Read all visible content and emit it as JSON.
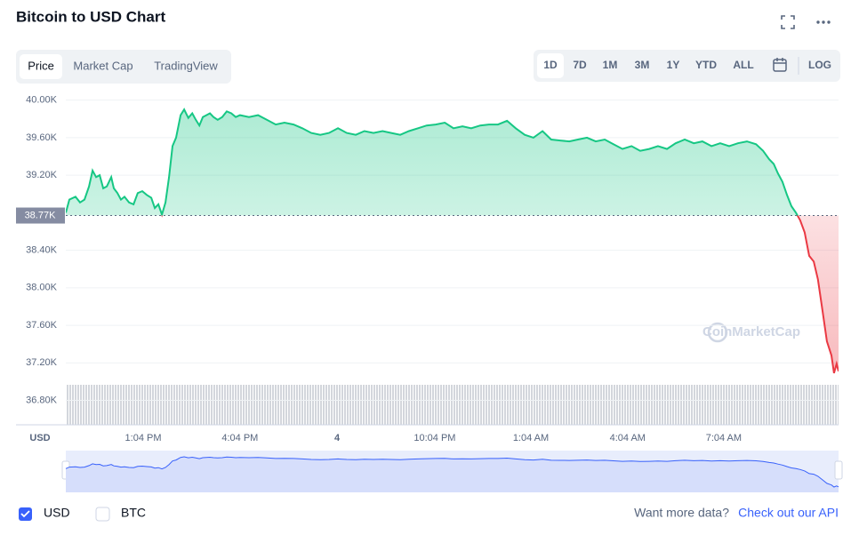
{
  "header": {
    "title": "Bitcoin to USD Chart",
    "tabs": [
      "Price",
      "Market Cap",
      "TradingView"
    ],
    "ranges": [
      "1D",
      "7D",
      "1M",
      "3M",
      "1Y",
      "YTD",
      "ALL"
    ],
    "log": "LOG"
  },
  "chart_data": {
    "type": "line",
    "y_label": "USD",
    "watermark": "CoinMarketCap",
    "up_color": "#16c784",
    "down_color": "#ea3943",
    "grid": true,
    "baseline": {
      "value": 38770,
      "label": "38.77K"
    },
    "ylim": [
      36540,
      40120
    ],
    "yticks": [
      {
        "value": 40000,
        "label": "40.00K"
      },
      {
        "value": 39600,
        "label": "39.60K"
      },
      {
        "value": 39200,
        "label": "39.20K"
      },
      {
        "value": 38400,
        "label": "38.40K"
      },
      {
        "value": 38000,
        "label": "38.00K"
      },
      {
        "value": 37600,
        "label": "37.60K"
      },
      {
        "value": 37200,
        "label": "37.20K"
      },
      {
        "value": 36800,
        "label": "36.80K"
      }
    ],
    "xlim": [
      0,
      23.96
    ],
    "xticks": [
      {
        "value": 2.4,
        "label": "1:04 PM"
      },
      {
        "value": 5.4,
        "label": "4:04 PM"
      },
      {
        "value": 8.41,
        "label": "4"
      },
      {
        "value": 11.44,
        "label": "10:04 PM"
      },
      {
        "value": 14.42,
        "label": "1:04 AM"
      },
      {
        "value": 17.42,
        "label": "4:04 AM"
      },
      {
        "value": 20.4,
        "label": "7:04 AM"
      }
    ],
    "x": [
      0,
      0.11,
      0.3,
      0.44,
      0.58,
      0.72,
      0.83,
      0.94,
      1.05,
      1.16,
      1.27,
      1.41,
      1.49,
      1.6,
      1.71,
      1.82,
      1.96,
      2.1,
      2.23,
      2.37,
      2.51,
      2.65,
      2.76,
      2.87,
      2.98,
      3.09,
      3.2,
      3.31,
      3.42,
      3.56,
      3.67,
      3.8,
      3.92,
      4.03,
      4.14,
      4.25,
      4.36,
      4.47,
      4.58,
      4.71,
      4.85,
      4.99,
      5.13,
      5.27,
      5.4,
      5.68,
      5.96,
      6.23,
      6.51,
      6.78,
      7.06,
      7.33,
      7.61,
      7.89,
      8.16,
      8.44,
      8.71,
      8.99,
      9.26,
      9.54,
      9.82,
      10.09,
      10.37,
      10.64,
      10.92,
      11.19,
      11.47,
      11.75,
      12.02,
      12.3,
      12.57,
      12.85,
      13.12,
      13.4,
      13.68,
      13.95,
      14.23,
      14.5,
      14.78,
      15.05,
      15.33,
      15.61,
      15.88,
      16.16,
      16.43,
      16.71,
      16.98,
      17.26,
      17.54,
      17.81,
      18.09,
      18.36,
      18.64,
      18.91,
      19.19,
      19.47,
      19.74,
      20.02,
      20.29,
      20.57,
      20.84,
      21.12,
      21.4,
      21.62,
      21.81,
      21.95,
      22.08,
      22.22,
      22.36,
      22.5,
      22.64,
      22.77,
      22.91,
      23.05,
      23.19,
      23.32,
      23.46,
      23.6,
      23.74,
      23.82,
      23.9,
      23.96
    ],
    "values": [
      38800,
      38940,
      38970,
      38910,
      38940,
      39080,
      39250,
      39180,
      39200,
      39060,
      39080,
      39180,
      39060,
      39010,
      38940,
      38970,
      38910,
      38890,
      39010,
      39030,
      38990,
      38960,
      38850,
      38890,
      38780,
      38910,
      39180,
      39510,
      39600,
      39840,
      39900,
      39810,
      39860,
      39790,
      39730,
      39820,
      39840,
      39860,
      39820,
      39790,
      39820,
      39880,
      39860,
      39820,
      39840,
      39820,
      39840,
      39790,
      39740,
      39760,
      39740,
      39700,
      39650,
      39630,
      39650,
      39700,
      39650,
      39630,
      39670,
      39650,
      39670,
      39650,
      39630,
      39670,
      39700,
      39730,
      39740,
      39760,
      39700,
      39720,
      39700,
      39730,
      39740,
      39740,
      39780,
      39700,
      39630,
      39600,
      39670,
      39580,
      39570,
      39560,
      39580,
      39600,
      39560,
      39580,
      39530,
      39480,
      39510,
      39460,
      39480,
      39510,
      39480,
      39540,
      39580,
      39540,
      39560,
      39510,
      39540,
      39510,
      39540,
      39560,
      39530,
      39460,
      39370,
      39320,
      39220,
      39130,
      38990,
      38870,
      38800,
      38720,
      38590,
      38340,
      38280,
      38090,
      37760,
      37430,
      37280,
      37090,
      37190,
      37110
    ]
  },
  "footer": {
    "currencies": [
      "USD",
      "BTC"
    ],
    "prompt": "Want more data?",
    "link": "Check out our API"
  }
}
